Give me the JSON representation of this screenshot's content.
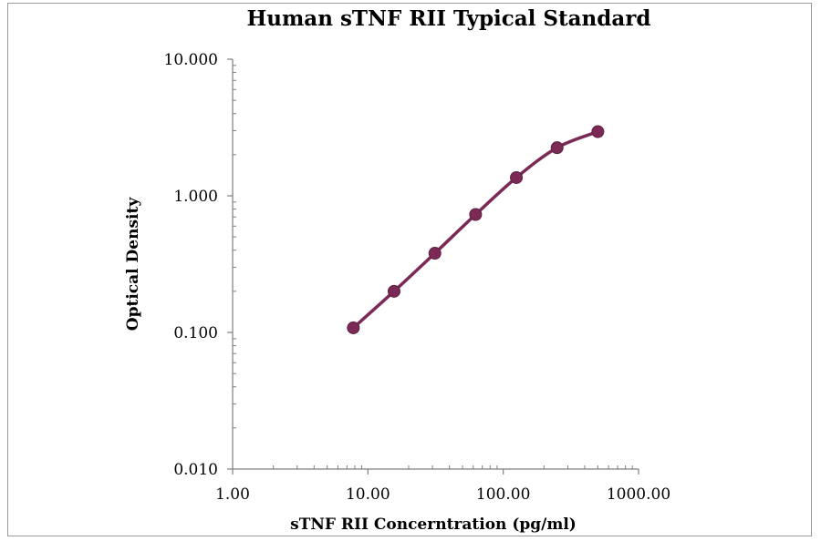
{
  "chart_data": {
    "type": "line",
    "title": "Human sTNF RII Typical Standard",
    "xlabel": "sTNF RII Concerntration (pg/ml)",
    "ylabel": "Optical Density",
    "x_scale": "log",
    "y_scale": "log",
    "xlim": [
      1,
      1000
    ],
    "ylim": [
      0.01,
      10
    ],
    "x_ticks": [
      {
        "value": 1,
        "label": "1.00"
      },
      {
        "value": 10,
        "label": "10.00"
      },
      {
        "value": 100,
        "label": "100.00"
      },
      {
        "value": 1000,
        "label": "1000.00"
      }
    ],
    "y_ticks": [
      {
        "value": 0.01,
        "label": "0.010"
      },
      {
        "value": 0.1,
        "label": "0.100"
      },
      {
        "value": 1,
        "label": "1.000"
      },
      {
        "value": 10,
        "label": "10.000"
      }
    ],
    "grid": false,
    "series": [
      {
        "color": "#7a2a54",
        "x": [
          7.8,
          15.6,
          31.25,
          62.5,
          125,
          250,
          500
        ],
        "y": [
          0.108,
          0.2,
          0.38,
          0.73,
          1.36,
          2.25,
          2.95
        ]
      }
    ]
  }
}
